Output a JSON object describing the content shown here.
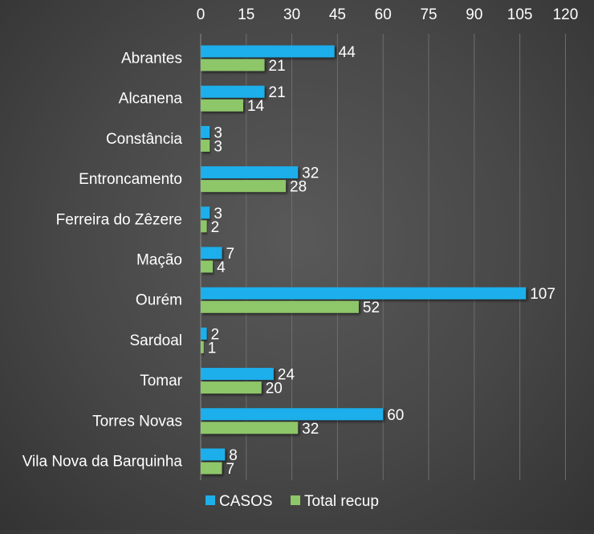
{
  "chart_data": {
    "type": "bar",
    "orientation": "horizontal",
    "categories": [
      "Abrantes",
      "Alcanena",
      "Constância",
      "Entroncamento",
      "Ferreira do Zêzere",
      "Mação",
      "Ourém",
      "Sardoal",
      "Tomar",
      "Torres Novas",
      "Vila Nova da Barquinha"
    ],
    "series": [
      {
        "name": "CASOS",
        "values": [
          44,
          21,
          3,
          32,
          3,
          7,
          107,
          2,
          24,
          60,
          8
        ],
        "color": "#1EAFEB"
      },
      {
        "name": "Total recup",
        "values": [
          21,
          14,
          3,
          28,
          2,
          4,
          52,
          1,
          20,
          32,
          7
        ],
        "color": "#8EC66A"
      }
    ],
    "xlim": [
      0,
      120
    ],
    "xticks": [
      0,
      15,
      30,
      45,
      60,
      75,
      90,
      105,
      120
    ],
    "x_axis_position": "top",
    "grid": true,
    "legend": "bottom",
    "data_labels": true
  }
}
